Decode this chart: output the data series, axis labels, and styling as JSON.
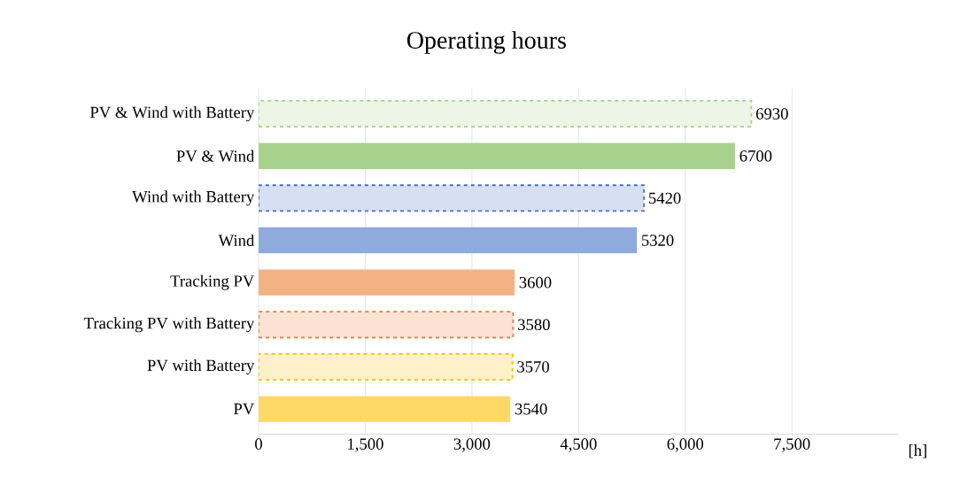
{
  "chart_data": {
    "type": "bar",
    "orientation": "horizontal",
    "title": "Operating hours",
    "xlabel": "[h]",
    "categories": [
      "PV & Wind with Battery",
      "PV & Wind",
      "Wind with Battery",
      "Wind",
      "Tracking PV",
      "Tracking PV with Battery",
      "PV with Battery",
      "PV"
    ],
    "series": [
      {
        "values": [
          null,
          6700,
          null,
          5320,
          3600,
          null,
          null,
          3540
        ],
        "colors": [
          null,
          "#a9d18e",
          null,
          "#8faadc",
          "#f4b183",
          null,
          null,
          "#ffd966"
        ],
        "line_style": "solid"
      },
      {
        "values": [
          6930,
          null,
          5420,
          null,
          null,
          3580,
          3570,
          null
        ],
        "colors": [
          "#a9d18e",
          null,
          "#4472c4",
          null,
          null,
          "#ed7d31",
          "#ffc000",
          null
        ],
        "line_style": "dashed"
      }
    ],
    "data_labels": true,
    "xlim": [
      0,
      9000
    ],
    "xticks": [
      0,
      {
        "value": 1500,
        "label": "1,500"
      },
      {
        "value": 3000,
        "label": "3,000"
      },
      {
        "value": 4500,
        "label": "4,500"
      },
      {
        "value": 6000,
        "label": "6,000"
      },
      {
        "value": 7500,
        "label": "7,500"
      }
    ],
    "grid": "x"
  }
}
